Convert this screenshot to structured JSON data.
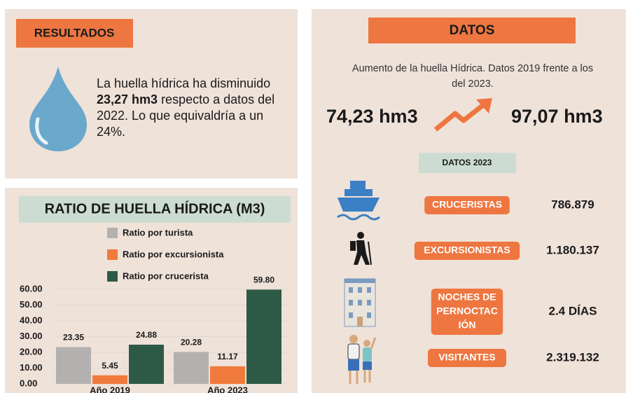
{
  "results": {
    "heading": "RESULTADOS",
    "summary": [
      "La huella hídrica ha disminuido",
      "23,27 hm3",
      "respecto a datos del",
      "2022. Lo que equivaldría a un",
      "24%."
    ]
  },
  "chart_data": {
    "type": "bar",
    "title": "RATIO DE  HUELLA HÍDRICA (M3)",
    "categories": [
      "Año 2019",
      "Año 2023"
    ],
    "series": [
      {
        "name": "Ratio por turista",
        "color": "#b3b1af",
        "values": [
          23.35,
          20.28
        ],
        "value_labels": [
          "23.35",
          "20.28"
        ]
      },
      {
        "name": "Ratio por excursionista",
        "color": "#f07a3c",
        "values": [
          5.45,
          11.17
        ],
        "value_labels": [
          "5.45",
          "11.17"
        ]
      },
      {
        "name": "Ratio por crucerista",
        "color": "#2d5a46",
        "values": [
          24.88,
          59.8
        ],
        "value_labels": [
          "24.88",
          "59.80"
        ]
      }
    ],
    "ylim": [
      0,
      60
    ],
    "yticks": [
      {
        "value": 0,
        "label": "0.00"
      },
      {
        "value": 10,
        "label": "10.00"
      },
      {
        "value": 20,
        "label": "20.00"
      },
      {
        "value": 30,
        "label": "30.00"
      },
      {
        "value": 40,
        "label": "40.00"
      },
      {
        "value": 50,
        "label": "50.00"
      },
      {
        "value": 60,
        "label": "60.00"
      }
    ]
  },
  "datos": {
    "heading": "DATOS",
    "subtitle": [
      "Aumento de la huella Hídrica. Datos 2019 frente a los",
      "del 2023."
    ],
    "from": "74,23 hm3",
    "to": "97,07 hm3",
    "section": "DATOS  2023",
    "rows": [
      {
        "label": [
          "CRUCERISTAS"
        ],
        "value": "786.879"
      },
      {
        "label": [
          "EXCURSIONISTAS"
        ],
        "value": "1.180.137"
      },
      {
        "label": [
          "NOCHES DE",
          "PERNOCTAC",
          "IÓN"
        ],
        "value": "2.4 DÍAS"
      },
      {
        "label": [
          "VISITANTES"
        ],
        "value": "2.319.132"
      }
    ]
  }
}
